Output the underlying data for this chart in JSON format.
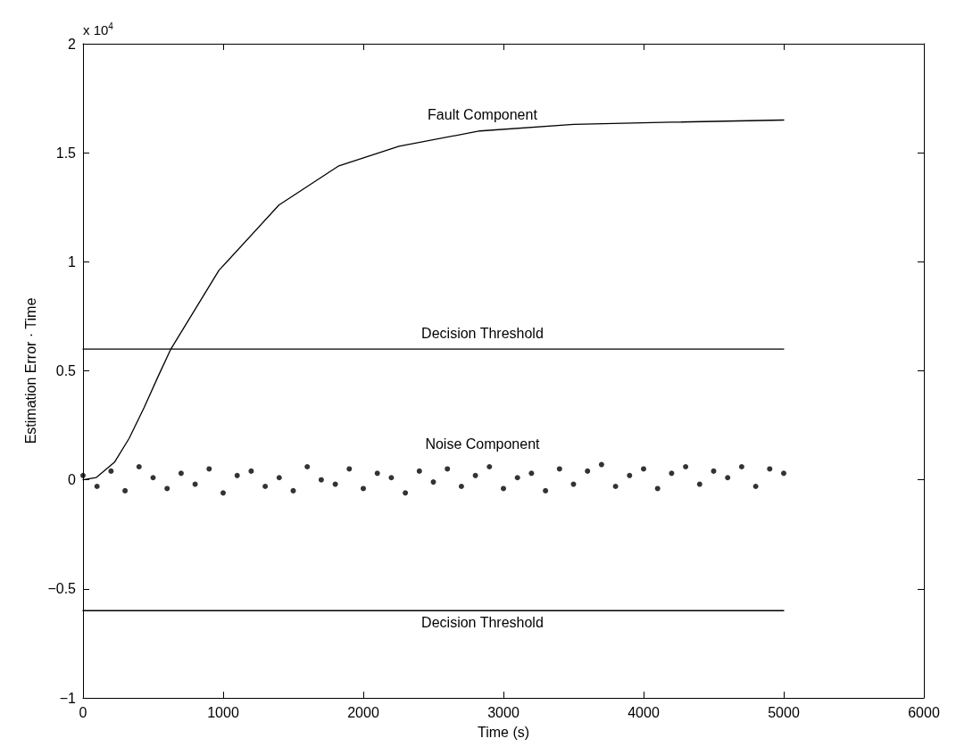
{
  "chart_data": {
    "type": "line",
    "xlabel": "Time (s)",
    "ylabel": "Estimation Error · Time",
    "xlim": [
      0,
      6000
    ],
    "xticks": [
      0,
      1000,
      2000,
      3000,
      4000,
      5000,
      6000
    ],
    "ylim": [
      -1,
      2
    ],
    "yticks": [
      {
        "value": -1,
        "label": "−1"
      },
      {
        "value": -0.5,
        "label": "−0.5"
      },
      0,
      0.5,
      1,
      1.5,
      2
    ],
    "grid": false,
    "legend": false,
    "series": [
      {
        "name": "Fault Component",
        "color": "#000000",
        "x": [
          0,
          93,
          224,
          329,
          435,
          540,
          627,
          969,
          1398,
          1826,
          2255,
          2832,
          3500,
          4200,
          5000
        ],
        "values": [
          0,
          0.01,
          0.08,
          0.19,
          0.33,
          0.48,
          0.6,
          0.96,
          1.26,
          1.44,
          1.53,
          1.6,
          1.63,
          1.64,
          1.65
        ]
      },
      {
        "name": "Decision Threshold",
        "color": "#000000",
        "x": [
          0,
          5000
        ],
        "values": [
          0.6,
          0.6
        ]
      },
      {
        "name": "Decision Threshold",
        "color": "#000000",
        "x": [
          0,
          5000
        ],
        "values": [
          -0.6,
          -0.6
        ]
      },
      {
        "name": "Noise Component",
        "type": "scatter",
        "marker": "circle",
        "color": "#000000",
        "x": [
          0,
          100,
          200,
          300,
          400,
          500,
          600,
          700,
          800,
          900,
          1000,
          1100,
          1200,
          1300,
          1400,
          1500,
          1600,
          1700,
          1800,
          1900,
          2000,
          2100,
          2200,
          2300,
          2400,
          2500,
          2600,
          2700,
          2800,
          2900,
          3000,
          3100,
          3200,
          3300,
          3400,
          3500,
          3600,
          3700,
          3800,
          3900,
          4000,
          4100,
          4200,
          4300,
          4400,
          4500,
          4600,
          4700,
          4800,
          4900,
          5000
        ],
        "values": [
          0.02,
          -0.03,
          0.04,
          -0.05,
          0.06,
          0.01,
          -0.04,
          0.03,
          -0.02,
          0.05,
          -0.06,
          0.02,
          0.04,
          -0.03,
          0.01,
          -0.05,
          0.06,
          0.0,
          -0.02,
          0.05,
          -0.04,
          0.03,
          0.01,
          -0.06,
          0.04,
          -0.01,
          0.05,
          -0.03,
          0.02,
          0.06,
          -0.04,
          0.01,
          0.03,
          -0.05,
          0.05,
          -0.02,
          0.04,
          0.07,
          -0.03,
          0.02,
          0.05,
          -0.04,
          0.03,
          0.06,
          -0.02,
          0.04,
          0.01,
          0.06,
          -0.03,
          0.05,
          0.03
        ]
      }
    ],
    "annotations": [
      "x 10$^{4}$"
    ]
  }
}
